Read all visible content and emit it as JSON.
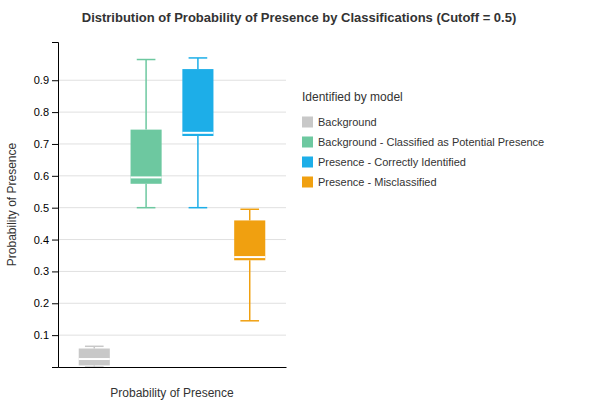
{
  "chart_data": {
    "type": "box",
    "title": "Distribution of Probability of Presence by Classifications (Cutoff = 0.5)",
    "x_label": "Probability of Presence",
    "y_label": "Probability of Presence",
    "ylim": [
      0.0,
      1.02
    ],
    "yticks": [
      0.1,
      0.2,
      0.3,
      0.4,
      0.5,
      0.6,
      0.7,
      0.8,
      0.9
    ],
    "grid": true,
    "legend": "right",
    "legend_title": "Identified by model",
    "tick_labels": "y",
    "series": [
      {
        "name": "Background",
        "color": "#c8c8c8",
        "whisker_low": 0.0,
        "q1": 0.005,
        "median": 0.025,
        "q3": 0.058,
        "whisker_high": 0.065
      },
      {
        "name": "Background - Classified as Potential Presence",
        "color": "#6dc8a0",
        "whisker_low": 0.5,
        "q1": 0.575,
        "median": 0.595,
        "q3": 0.745,
        "whisker_high": 0.965
      },
      {
        "name": "Presence - Correctly Identified",
        "color": "#1daee8",
        "whisker_low": 0.5,
        "q1": 0.725,
        "median": 0.735,
        "q3": 0.935,
        "whisker_high": 0.97
      },
      {
        "name": "Presence - Misclassified",
        "color": "#f0a010",
        "whisker_low": 0.145,
        "q1": 0.335,
        "median": 0.345,
        "q3": 0.46,
        "whisker_high": 0.495
      }
    ]
  }
}
